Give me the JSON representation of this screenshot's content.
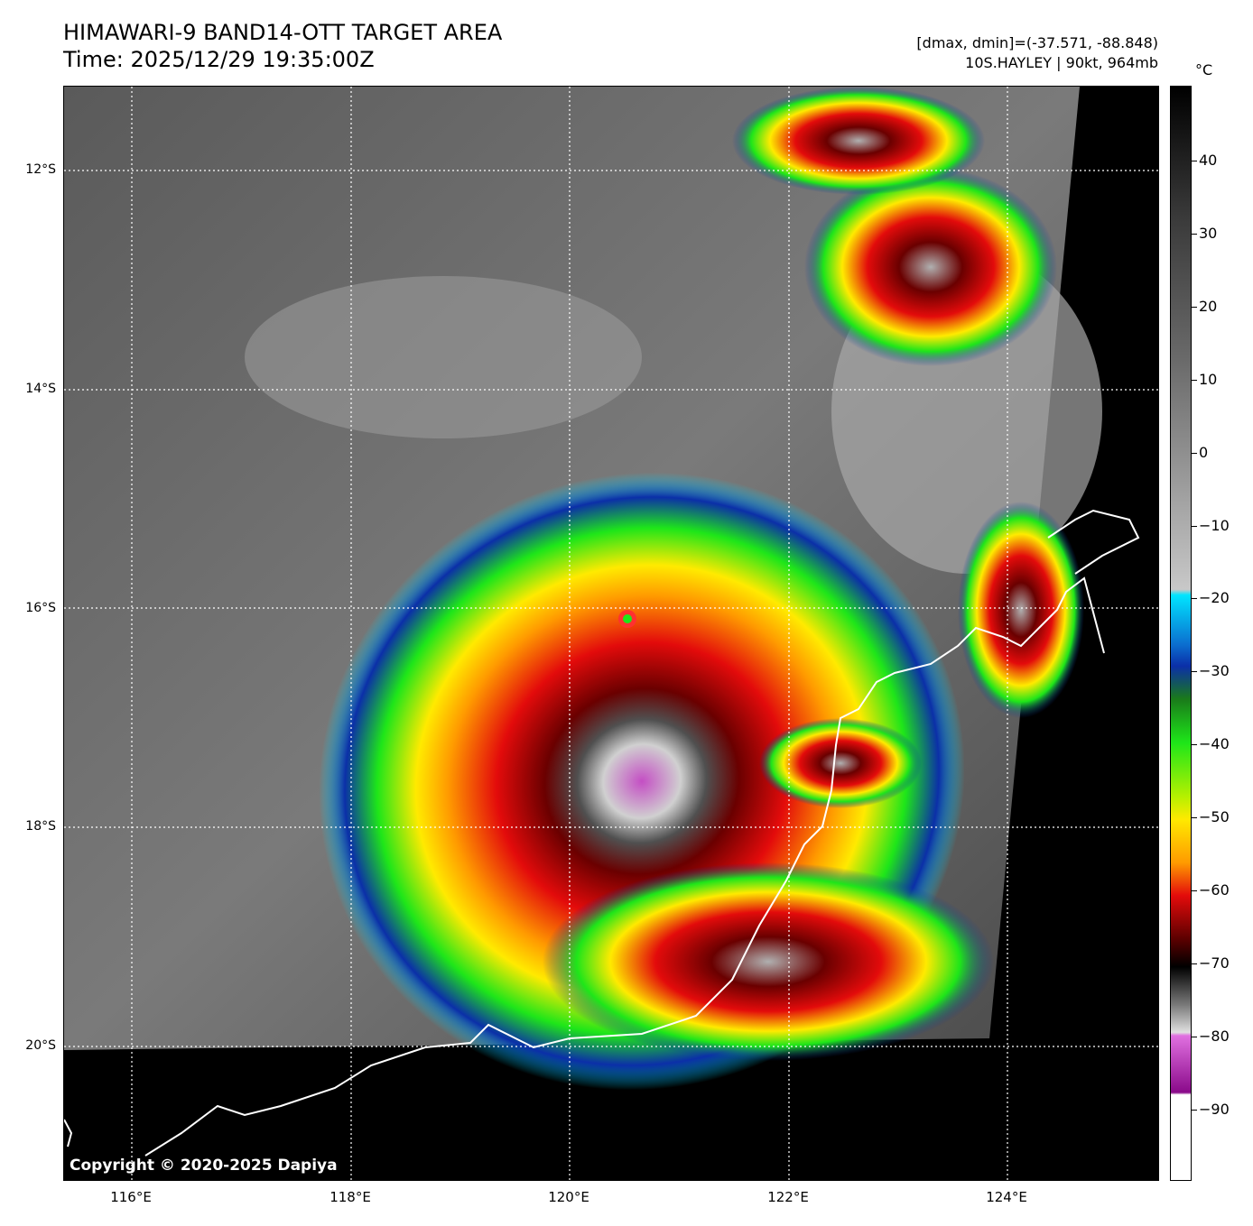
{
  "header": {
    "title_line1": "HIMAWARI-9 BAND14-OTT TARGET AREA",
    "title_line2": "Time: 2025/12/29 19:35:00Z",
    "range_text": "[dmax, dmin]=(-37.571, -88.848)",
    "storm_text": "10S.HAYLEY | 90kt, 964mb"
  },
  "map": {
    "copyright": "Copyright © 2020-2025 Dapiya",
    "lat_labels": [
      "12°S",
      "14°S",
      "16°S",
      "18°S",
      "20°S"
    ],
    "lon_labels": [
      "116°E",
      "118°E",
      "120°E",
      "122°E",
      "124°E"
    ],
    "storm_center": {
      "lat": -16.08,
      "lon": 120.52
    }
  },
  "colorbar": {
    "unit": "°C",
    "ticks": [
      "40",
      "30",
      "20",
      "10",
      "0",
      "−10",
      "−20",
      "−30",
      "−40",
      "−50",
      "−60",
      "−70",
      "−80",
      "−90"
    ],
    "colors": {
      "warm_dark": "#000000",
      "cyan": "#00e5ff",
      "blue": "#0b2fa8",
      "green": "#1ee619",
      "yellow": "#ffea00",
      "red": "#e30b0b",
      "dark_red": "#5a0000",
      "magenta": "#c44ec4",
      "white": "#ffffff"
    }
  }
}
